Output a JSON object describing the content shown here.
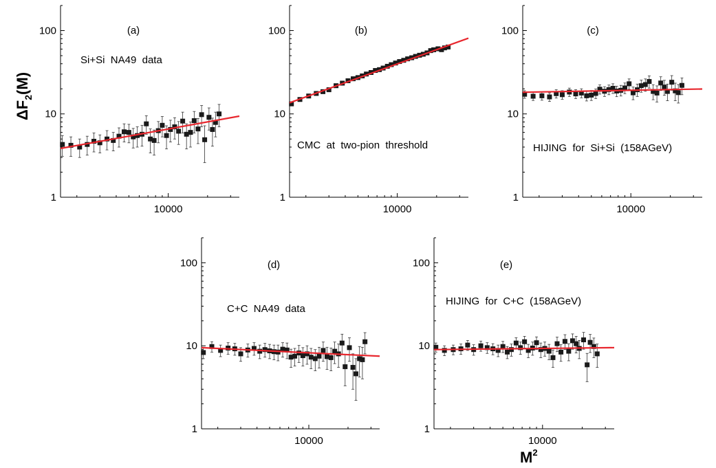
{
  "figure": {
    "ylabel": {
      "main": "ΔF",
      "sub": "2",
      "tail": "(M)"
    },
    "xlabel": {
      "main": "M",
      "sup": "2"
    }
  },
  "colors": {
    "fit_line": "#e8262d",
    "markers": "#1a1a1a",
    "axes": "#000000"
  },
  "chart_data": [
    {
      "panel": "(a)",
      "type": "scatter",
      "annotation": "Si+Si  NA49  data",
      "x_scale": "log",
      "y_scale": "log",
      "xlim": [
        1500,
        35000
      ],
      "ylim": [
        1,
        200
      ],
      "yticks": [
        1,
        10,
        100
      ],
      "ytick_labels": [
        "1",
        "10",
        "100"
      ],
      "xticks": [
        10000
      ],
      "xtick_labels": [
        "10000"
      ],
      "points": [
        {
          "x": 1550,
          "y": 4.3,
          "err": 1.2
        },
        {
          "x": 1800,
          "y": 4.2,
          "err": 1.1
        },
        {
          "x": 2100,
          "y": 4.0,
          "err": 1.0
        },
        {
          "x": 2400,
          "y": 4.3,
          "err": 1.1
        },
        {
          "x": 2700,
          "y": 4.7,
          "err": 1.2
        },
        {
          "x": 3000,
          "y": 4.5,
          "err": 1.1
        },
        {
          "x": 3400,
          "y": 5.0,
          "err": 1.3
        },
        {
          "x": 3800,
          "y": 4.8,
          "err": 1.2
        },
        {
          "x": 4200,
          "y": 5.4,
          "err": 1.4
        },
        {
          "x": 4600,
          "y": 6.1,
          "err": 1.5
        },
        {
          "x": 5000,
          "y": 6.0,
          "err": 1.5
        },
        {
          "x": 5400,
          "y": 5.3,
          "err": 1.4
        },
        {
          "x": 5800,
          "y": 5.5,
          "err": 1.5
        },
        {
          "x": 6300,
          "y": 5.7,
          "err": 1.6
        },
        {
          "x": 6800,
          "y": 7.6,
          "err": 1.9
        },
        {
          "x": 7300,
          "y": 5.0,
          "err": 1.6
        },
        {
          "x": 7800,
          "y": 4.8,
          "err": 1.6
        },
        {
          "x": 8400,
          "y": 6.3,
          "err": 1.8
        },
        {
          "x": 9000,
          "y": 7.3,
          "err": 2.0
        },
        {
          "x": 9700,
          "y": 5.5,
          "err": 1.7
        },
        {
          "x": 10400,
          "y": 6.5,
          "err": 1.9
        },
        {
          "x": 11200,
          "y": 7.0,
          "err": 2.0
        },
        {
          "x": 12000,
          "y": 6.2,
          "err": 1.9
        },
        {
          "x": 12900,
          "y": 8.2,
          "err": 2.3
        },
        {
          "x": 13800,
          "y": 5.7,
          "err": 1.9
        },
        {
          "x": 14800,
          "y": 6.0,
          "err": 2.0
        },
        {
          "x": 15800,
          "y": 8.3,
          "err": 2.4
        },
        {
          "x": 16900,
          "y": 6.6,
          "err": 2.2
        },
        {
          "x": 18000,
          "y": 9.8,
          "err": 2.8
        },
        {
          "x": 19000,
          "y": 4.9,
          "err": 2.3
        },
        {
          "x": 20500,
          "y": 9.1,
          "err": 2.7
        },
        {
          "x": 21800,
          "y": 6.5,
          "err": 2.4
        },
        {
          "x": 23000,
          "y": 7.9,
          "err": 2.6
        },
        {
          "x": 24500,
          "y": 10.0,
          "err": 3.0
        }
      ],
      "fit": {
        "x": [
          1500,
          35000
        ],
        "y": [
          3.85,
          9.4
        ]
      }
    },
    {
      "panel": "(b)",
      "type": "scatter",
      "annotation": "CMC  at  two-pion  threshold",
      "x_scale": "log",
      "y_scale": "log",
      "xlim": [
        1500,
        35000
      ],
      "ylim": [
        1,
        200
      ],
      "yticks": [
        1,
        10,
        100
      ],
      "ytick_labels": [
        "1",
        "10",
        "100"
      ],
      "xticks": [
        10000
      ],
      "xtick_labels": [
        "10000"
      ],
      "points": [
        {
          "x": 1550,
          "y": 13.2,
          "err": 0.4
        },
        {
          "x": 1800,
          "y": 14.9,
          "err": 0.4
        },
        {
          "x": 2100,
          "y": 16.4,
          "err": 0.5
        },
        {
          "x": 2400,
          "y": 17.6,
          "err": 0.5
        },
        {
          "x": 2700,
          "y": 18.5,
          "err": 0.5
        },
        {
          "x": 3000,
          "y": 19.5,
          "err": 0.6
        },
        {
          "x": 3400,
          "y": 21.8,
          "err": 0.6
        },
        {
          "x": 3800,
          "y": 23.4,
          "err": 0.7
        },
        {
          "x": 4200,
          "y": 25.0,
          "err": 0.7
        },
        {
          "x": 4600,
          "y": 26.4,
          "err": 0.8
        },
        {
          "x": 5000,
          "y": 27.3,
          "err": 0.8
        },
        {
          "x": 5400,
          "y": 28.6,
          "err": 0.8
        },
        {
          "x": 5800,
          "y": 30.1,
          "err": 0.9
        },
        {
          "x": 6300,
          "y": 31.4,
          "err": 0.9
        },
        {
          "x": 6800,
          "y": 33.2,
          "err": 1.0
        },
        {
          "x": 7300,
          "y": 34.0,
          "err": 1.0
        },
        {
          "x": 7800,
          "y": 35.5,
          "err": 1.0
        },
        {
          "x": 8400,
          "y": 37.3,
          "err": 1.1
        },
        {
          "x": 9000,
          "y": 39.0,
          "err": 1.1
        },
        {
          "x": 9700,
          "y": 40.8,
          "err": 1.2
        },
        {
          "x": 10400,
          "y": 42.5,
          "err": 1.2
        },
        {
          "x": 11200,
          "y": 44.0,
          "err": 1.3
        },
        {
          "x": 12000,
          "y": 45.8,
          "err": 1.3
        },
        {
          "x": 12900,
          "y": 47.2,
          "err": 1.4
        },
        {
          "x": 13800,
          "y": 49.0,
          "err": 1.4
        },
        {
          "x": 14800,
          "y": 50.6,
          "err": 1.5
        },
        {
          "x": 15800,
          "y": 52.0,
          "err": 1.5
        },
        {
          "x": 16900,
          "y": 54.0,
          "err": 1.6
        },
        {
          "x": 18000,
          "y": 57.5,
          "err": 1.7
        },
        {
          "x": 19000,
          "y": 58.8,
          "err": 1.7
        },
        {
          "x": 20500,
          "y": 60.5,
          "err": 1.8
        },
        {
          "x": 21800,
          "y": 59.0,
          "err": 1.8
        },
        {
          "x": 23000,
          "y": 62.0,
          "err": 1.9
        },
        {
          "x": 24500,
          "y": 63.5,
          "err": 1.9
        }
      ],
      "fit": {
        "x": [
          1500,
          35000
        ],
        "y": [
          13.6,
          81.0
        ]
      }
    },
    {
      "panel": "(c)",
      "type": "scatter",
      "annotation": "HIJING  for  Si+Si  (158AGeV)",
      "x_scale": "log",
      "y_scale": "log",
      "xlim": [
        1500,
        35000
      ],
      "ylim": [
        1,
        200
      ],
      "yticks": [
        1,
        10,
        100
      ],
      "ytick_labels": [
        "1",
        "10",
        "100"
      ],
      "xticks": [
        10000
      ],
      "xtick_labels": [
        "10000"
      ],
      "points": [
        {
          "x": 1550,
          "y": 17.2,
          "err": 1.8
        },
        {
          "x": 1800,
          "y": 16.3,
          "err": 1.8
        },
        {
          "x": 2100,
          "y": 16.5,
          "err": 1.9
        },
        {
          "x": 2400,
          "y": 16.0,
          "err": 1.9
        },
        {
          "x": 2700,
          "y": 17.5,
          "err": 2.0
        },
        {
          "x": 3000,
          "y": 17.0,
          "err": 2.0
        },
        {
          "x": 3400,
          "y": 18.3,
          "err": 2.1
        },
        {
          "x": 3800,
          "y": 17.4,
          "err": 2.1
        },
        {
          "x": 4200,
          "y": 17.8,
          "err": 2.2
        },
        {
          "x": 4600,
          "y": 16.5,
          "err": 2.2
        },
        {
          "x": 5000,
          "y": 16.8,
          "err": 2.3
        },
        {
          "x": 5400,
          "y": 17.6,
          "err": 2.3
        },
        {
          "x": 5800,
          "y": 19.8,
          "err": 2.5
        },
        {
          "x": 6300,
          "y": 18.7,
          "err": 2.5
        },
        {
          "x": 6800,
          "y": 19.6,
          "err": 2.6
        },
        {
          "x": 7300,
          "y": 20.3,
          "err": 2.7
        },
        {
          "x": 7800,
          "y": 18.8,
          "err": 2.7
        },
        {
          "x": 8400,
          "y": 19.2,
          "err": 2.8
        },
        {
          "x": 9000,
          "y": 20.5,
          "err": 3.0
        },
        {
          "x": 9700,
          "y": 23.0,
          "err": 3.3
        },
        {
          "x": 10400,
          "y": 17.9,
          "err": 3.1
        },
        {
          "x": 11200,
          "y": 19.5,
          "err": 3.3
        },
        {
          "x": 12000,
          "y": 21.8,
          "err": 3.6
        },
        {
          "x": 12900,
          "y": 22.5,
          "err": 3.8
        },
        {
          "x": 13800,
          "y": 24.5,
          "err": 4.1
        },
        {
          "x": 14800,
          "y": 18.6,
          "err": 3.8
        },
        {
          "x": 15800,
          "y": 17.8,
          "err": 3.9
        },
        {
          "x": 16900,
          "y": 23.5,
          "err": 4.4
        },
        {
          "x": 18000,
          "y": 21.0,
          "err": 4.3
        },
        {
          "x": 19000,
          "y": 18.6,
          "err": 4.2
        },
        {
          "x": 20500,
          "y": 24.0,
          "err": 4.8
        },
        {
          "x": 21800,
          "y": 18.9,
          "err": 4.5
        },
        {
          "x": 23000,
          "y": 18.0,
          "err": 4.5
        },
        {
          "x": 24500,
          "y": 22.0,
          "err": 5.0
        }
      ],
      "fit": {
        "x": [
          1500,
          35000
        ],
        "y": [
          18.2,
          19.9
        ]
      }
    },
    {
      "panel": "(d)",
      "type": "scatter",
      "annotation": "C+C  NA49  data",
      "x_scale": "log",
      "y_scale": "log",
      "xlim": [
        1500,
        35000
      ],
      "ylim": [
        1,
        200
      ],
      "yticks": [
        1,
        10,
        100
      ],
      "ytick_labels": [
        "1",
        "10",
        "100"
      ],
      "xticks": [
        10000
      ],
      "xtick_labels": [
        "10000"
      ],
      "points": [
        {
          "x": 1550,
          "y": 8.3,
          "err": 1.3
        },
        {
          "x": 1800,
          "y": 9.8,
          "err": 1.4
        },
        {
          "x": 2100,
          "y": 8.8,
          "err": 1.4
        },
        {
          "x": 2400,
          "y": 9.4,
          "err": 1.5
        },
        {
          "x": 2700,
          "y": 9.2,
          "err": 1.5
        },
        {
          "x": 3000,
          "y": 8.0,
          "err": 1.5
        },
        {
          "x": 3400,
          "y": 8.9,
          "err": 1.6
        },
        {
          "x": 3800,
          "y": 9.3,
          "err": 1.6
        },
        {
          "x": 4200,
          "y": 8.6,
          "err": 1.6
        },
        {
          "x": 4600,
          "y": 9.0,
          "err": 1.7
        },
        {
          "x": 5000,
          "y": 8.7,
          "err": 1.7
        },
        {
          "x": 5400,
          "y": 8.5,
          "err": 1.7
        },
        {
          "x": 5800,
          "y": 8.4,
          "err": 1.8
        },
        {
          "x": 6300,
          "y": 9.1,
          "err": 1.8
        },
        {
          "x": 6800,
          "y": 8.9,
          "err": 1.9
        },
        {
          "x": 7300,
          "y": 7.3,
          "err": 1.8
        },
        {
          "x": 7800,
          "y": 7.5,
          "err": 1.8
        },
        {
          "x": 8400,
          "y": 8.2,
          "err": 1.9
        },
        {
          "x": 9000,
          "y": 7.6,
          "err": 1.9
        },
        {
          "x": 9700,
          "y": 8.0,
          "err": 2.0
        },
        {
          "x": 10400,
          "y": 7.3,
          "err": 2.0
        },
        {
          "x": 11200,
          "y": 7.0,
          "err": 2.0
        },
        {
          "x": 12000,
          "y": 7.5,
          "err": 2.1
        },
        {
          "x": 12900,
          "y": 8.8,
          "err": 2.3
        },
        {
          "x": 13800,
          "y": 7.4,
          "err": 2.2
        },
        {
          "x": 14800,
          "y": 7.2,
          "err": 2.2
        },
        {
          "x": 15800,
          "y": 8.6,
          "err": 2.5
        },
        {
          "x": 16900,
          "y": 8.0,
          "err": 2.5
        },
        {
          "x": 18000,
          "y": 10.8,
          "err": 3.0
        },
        {
          "x": 19000,
          "y": 5.6,
          "err": 2.3
        },
        {
          "x": 20500,
          "y": 9.5,
          "err": 3.0
        },
        {
          "x": 21800,
          "y": 5.5,
          "err": 2.5
        },
        {
          "x": 23000,
          "y": 4.6,
          "err": 2.4
        },
        {
          "x": 24500,
          "y": 7.0,
          "err": 2.8
        },
        {
          "x": 25800,
          "y": 6.8,
          "err": 2.8
        },
        {
          "x": 27000,
          "y": 11.2,
          "err": 3.2
        }
      ],
      "fit": {
        "x": [
          1500,
          35000
        ],
        "y": [
          9.5,
          7.5
        ]
      }
    },
    {
      "panel": "(e)",
      "type": "scatter",
      "annotation": "HIJING  for  C+C  (158AGeV)",
      "x_scale": "log",
      "y_scale": "log",
      "xlim": [
        1500,
        35000
      ],
      "ylim": [
        1,
        200
      ],
      "yticks": [
        1,
        10,
        100
      ],
      "ytick_labels": [
        "1",
        "10",
        "100"
      ],
      "xticks": [
        10000
      ],
      "xtick_labels": [
        "10000"
      ],
      "points": [
        {
          "x": 1550,
          "y": 9.6,
          "err": 1.2
        },
        {
          "x": 1800,
          "y": 8.8,
          "err": 1.2
        },
        {
          "x": 2100,
          "y": 9.0,
          "err": 1.2
        },
        {
          "x": 2400,
          "y": 9.2,
          "err": 1.3
        },
        {
          "x": 2700,
          "y": 10.2,
          "err": 1.4
        },
        {
          "x": 3000,
          "y": 9.0,
          "err": 1.3
        },
        {
          "x": 3400,
          "y": 10.0,
          "err": 1.4
        },
        {
          "x": 3800,
          "y": 9.5,
          "err": 1.4
        },
        {
          "x": 4200,
          "y": 9.2,
          "err": 1.4
        },
        {
          "x": 4600,
          "y": 8.8,
          "err": 1.4
        },
        {
          "x": 5000,
          "y": 9.8,
          "err": 1.5
        },
        {
          "x": 5400,
          "y": 8.4,
          "err": 1.4
        },
        {
          "x": 5800,
          "y": 9.0,
          "err": 1.5
        },
        {
          "x": 6300,
          "y": 10.8,
          "err": 1.7
        },
        {
          "x": 6800,
          "y": 9.5,
          "err": 1.6
        },
        {
          "x": 7300,
          "y": 11.2,
          "err": 1.8
        },
        {
          "x": 7800,
          "y": 8.8,
          "err": 1.6
        },
        {
          "x": 8400,
          "y": 9.4,
          "err": 1.7
        },
        {
          "x": 9000,
          "y": 10.9,
          "err": 1.9
        },
        {
          "x": 9700,
          "y": 9.0,
          "err": 1.8
        },
        {
          "x": 10400,
          "y": 9.3,
          "err": 1.8
        },
        {
          "x": 11200,
          "y": 8.6,
          "err": 1.8
        },
        {
          "x": 12000,
          "y": 7.2,
          "err": 1.7
        },
        {
          "x": 12900,
          "y": 10.6,
          "err": 2.1
        },
        {
          "x": 13800,
          "y": 8.4,
          "err": 1.9
        },
        {
          "x": 14800,
          "y": 11.3,
          "err": 2.3
        },
        {
          "x": 15800,
          "y": 8.6,
          "err": 2.0
        },
        {
          "x": 16900,
          "y": 11.5,
          "err": 2.4
        },
        {
          "x": 18000,
          "y": 10.6,
          "err": 2.4
        },
        {
          "x": 19000,
          "y": 9.3,
          "err": 2.3
        },
        {
          "x": 20500,
          "y": 11.8,
          "err": 2.7
        },
        {
          "x": 21800,
          "y": 5.9,
          "err": 2.2
        },
        {
          "x": 23000,
          "y": 11.0,
          "err": 2.7
        },
        {
          "x": 24500,
          "y": 9.8,
          "err": 2.6
        },
        {
          "x": 26000,
          "y": 8.0,
          "err": 2.5
        }
      ],
      "fit": {
        "x": [
          1500,
          35000
        ],
        "y": [
          9.0,
          9.5
        ]
      }
    }
  ]
}
